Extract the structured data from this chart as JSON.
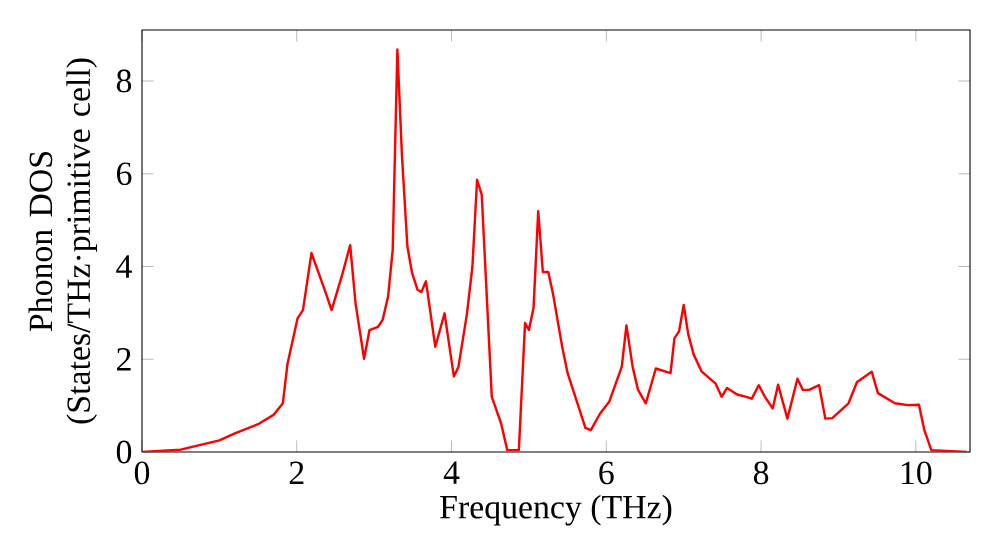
{
  "chart_data": {
    "type": "line",
    "xlabel": "Frequency (THz)",
    "ylabel": "Phonon DOS (States/THz·primitive cell)",
    "xlim": [
      0,
      10.7
    ],
    "ylim": [
      0,
      9.1
    ],
    "xticks": [
      0,
      2,
      4,
      6,
      8,
      10
    ],
    "yticks": [
      0,
      2,
      4,
      6,
      8
    ],
    "grid": false,
    "series": [
      {
        "color": "#ff0000",
        "x": [
          0,
          0.5,
          1,
          1.2,
          1.5,
          1.7,
          1.82,
          1.88,
          2.01,
          2.08,
          2.19,
          2.36,
          2.45,
          2.58,
          2.69,
          2.76,
          2.87,
          2.94,
          3.05,
          3.11,
          3.18,
          3.24,
          3.3,
          3.36,
          3.43,
          3.49,
          3.56,
          3.61,
          3.67,
          3.79,
          3.91,
          4.03,
          4.09,
          4.2,
          4.27,
          4.33,
          4.39,
          4.52,
          4.64,
          4.72,
          4.87,
          4.95,
          5.0,
          5.06,
          5.12,
          5.18,
          5.25,
          5.31,
          5.43,
          5.5,
          5.73,
          5.8,
          5.92,
          6.04,
          6.2,
          6.26,
          6.34,
          6.41,
          6.51,
          6.64,
          6.83,
          6.88,
          6.94,
          7.0,
          7.06,
          7.13,
          7.23,
          7.41,
          7.49,
          7.56,
          7.69,
          7.81,
          7.88,
          7.97,
          8.05,
          8.15,
          8.22,
          8.34,
          8.47,
          8.54,
          8.62,
          8.75,
          8.83,
          8.92,
          9.13,
          9.24,
          9.43,
          9.51,
          9.73,
          9.9,
          10.04,
          10.11,
          10.2,
          10.66
        ],
        "values": [
          0,
          0.05,
          0.25,
          0.4,
          0.6,
          0.8,
          1.05,
          1.9,
          2.88,
          3.06,
          4.29,
          3.5,
          3.06,
          3.78,
          4.46,
          3.2,
          2.01,
          2.63,
          2.7,
          2.85,
          3.35,
          4.36,
          8.68,
          6.37,
          4.43,
          3.86,
          3.5,
          3.45,
          3.68,
          2.27,
          2.99,
          1.63,
          1.84,
          2.99,
          4.0,
          5.87,
          5.55,
          1.19,
          0.62,
          0.04,
          0.04,
          2.78,
          2.63,
          3.11,
          5.19,
          3.88,
          3.88,
          3.42,
          2.27,
          1.7,
          0.52,
          0.47,
          0.83,
          1.09,
          1.84,
          2.73,
          1.84,
          1.34,
          1.05,
          1.8,
          1.7,
          2.45,
          2.6,
          3.17,
          2.53,
          2.1,
          1.74,
          1.48,
          1.19,
          1.38,
          1.24,
          1.19,
          1.15,
          1.44,
          1.19,
          0.94,
          1.45,
          0.72,
          1.58,
          1.34,
          1.34,
          1.44,
          0.72,
          0.73,
          1.05,
          1.51,
          1.73,
          1.27,
          1.05,
          1.01,
          1.02,
          0.47,
          0.04,
          0
        ]
      }
    ]
  }
}
